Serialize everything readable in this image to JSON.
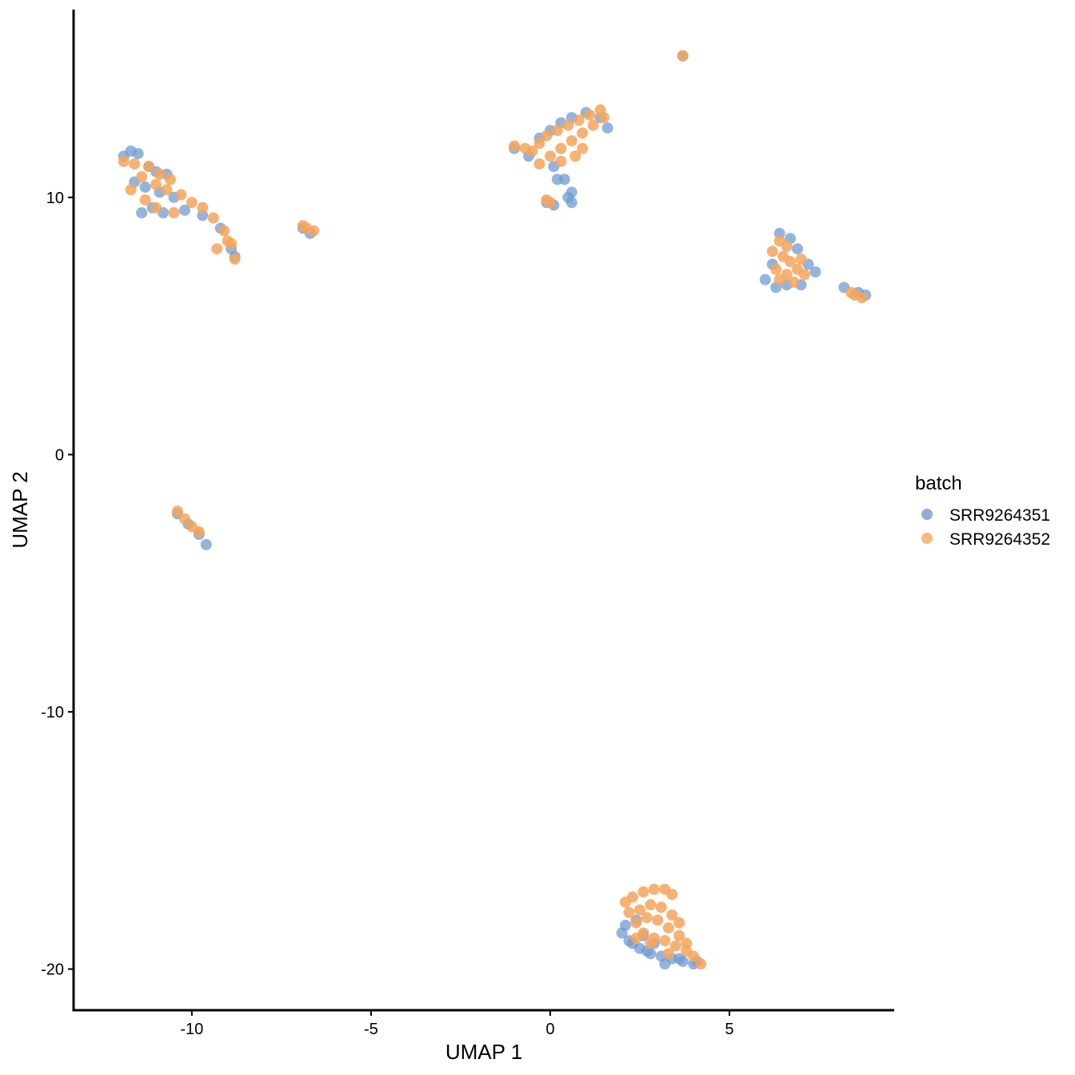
{
  "chart_data": {
    "type": "scatter",
    "title": "",
    "xlabel": "UMAP 1",
    "ylabel": "UMAP 2",
    "xlim": [
      -13.3,
      9.6
    ],
    "ylim": [
      -21.6,
      17.3
    ],
    "xticks": [
      -10,
      -5,
      0,
      5
    ],
    "yticks": [
      -20,
      -10,
      0,
      10
    ],
    "grid": false,
    "legend": {
      "title": "batch",
      "placement": "right",
      "entries": [
        "SRR9264351",
        "SRR9264352"
      ]
    },
    "colors": {
      "SRR9264351": "#6f9bd1",
      "SRR9264352": "#f5a55c"
    },
    "series": [
      {
        "name": "SRR9264351",
        "points": [
          [
            -11.9,
            11.6
          ],
          [
            -11.7,
            11.8
          ],
          [
            -11.5,
            11.7
          ],
          [
            -11.2,
            11.2
          ],
          [
            -11.0,
            11.0
          ],
          [
            -10.7,
            10.9
          ],
          [
            -11.6,
            10.6
          ],
          [
            -11.3,
            10.4
          ],
          [
            -10.9,
            10.2
          ],
          [
            -10.5,
            10.0
          ],
          [
            -11.1,
            9.6
          ],
          [
            -11.4,
            9.4
          ],
          [
            -10.8,
            9.4
          ],
          [
            -10.2,
            9.5
          ],
          [
            -9.7,
            9.3
          ],
          [
            -9.2,
            8.8
          ],
          [
            -8.9,
            8.0
          ],
          [
            -8.8,
            7.7
          ],
          [
            -6.9,
            8.8
          ],
          [
            -6.7,
            8.6
          ],
          [
            -10.4,
            -2.3
          ],
          [
            -10.1,
            -2.7
          ],
          [
            -9.8,
            -3.1
          ],
          [
            -9.6,
            -3.5
          ],
          [
            -1.0,
            11.9
          ],
          [
            -0.6,
            11.6
          ],
          [
            -0.3,
            12.3
          ],
          [
            0.0,
            12.6
          ],
          [
            0.3,
            12.9
          ],
          [
            0.6,
            13.1
          ],
          [
            1.0,
            13.3
          ],
          [
            1.4,
            13.1
          ],
          [
            1.6,
            12.7
          ],
          [
            0.1,
            11.2
          ],
          [
            0.2,
            10.7
          ],
          [
            0.4,
            10.7
          ],
          [
            0.5,
            10.0
          ],
          [
            0.6,
            10.2
          ],
          [
            0.6,
            9.8
          ],
          [
            -0.1,
            9.8
          ],
          [
            0.1,
            9.7
          ],
          [
            6.4,
            8.6
          ],
          [
            6.7,
            8.4
          ],
          [
            6.9,
            8.0
          ],
          [
            7.2,
            7.4
          ],
          [
            7.4,
            7.1
          ],
          [
            6.2,
            7.4
          ],
          [
            6.0,
            6.8
          ],
          [
            6.3,
            6.5
          ],
          [
            6.6,
            6.6
          ],
          [
            7.0,
            6.6
          ],
          [
            8.2,
            6.5
          ],
          [
            8.6,
            6.3
          ],
          [
            8.8,
            6.2
          ],
          [
            3.7,
            15.5
          ],
          [
            2.0,
            -18.6
          ],
          [
            2.2,
            -18.9
          ],
          [
            2.5,
            -19.2
          ],
          [
            2.8,
            -19.4
          ],
          [
            3.1,
            -19.5
          ],
          [
            3.4,
            -19.6
          ],
          [
            3.7,
            -19.7
          ],
          [
            4.0,
            -19.8
          ],
          [
            2.1,
            -18.3
          ],
          [
            2.4,
            -18.1
          ],
          [
            2.3,
            -19.0
          ],
          [
            2.7,
            -19.3
          ],
          [
            3.2,
            -19.8
          ],
          [
            3.6,
            -19.6
          ],
          [
            4.1,
            -19.7
          ],
          [
            2.6,
            -18.7
          ],
          [
            2.9,
            -19.0
          ]
        ]
      },
      {
        "name": "SRR9264352",
        "points": [
          [
            -11.9,
            11.4
          ],
          [
            -11.6,
            11.3
          ],
          [
            -11.2,
            11.2
          ],
          [
            -10.9,
            10.9
          ],
          [
            -10.6,
            10.7
          ],
          [
            -11.4,
            10.8
          ],
          [
            -11.0,
            10.5
          ],
          [
            -10.7,
            10.3
          ],
          [
            -10.3,
            10.1
          ],
          [
            -10.0,
            9.8
          ],
          [
            -9.7,
            9.6
          ],
          [
            -9.4,
            9.2
          ],
          [
            -9.1,
            8.7
          ],
          [
            -8.9,
            8.2
          ],
          [
            -8.8,
            7.6
          ],
          [
            -9.0,
            8.3
          ],
          [
            -9.3,
            8.0
          ],
          [
            -11.3,
            9.9
          ],
          [
            -11.0,
            9.6
          ],
          [
            -10.5,
            9.4
          ],
          [
            -11.7,
            10.3
          ],
          [
            -6.9,
            8.9
          ],
          [
            -6.8,
            8.8
          ],
          [
            -6.6,
            8.7
          ],
          [
            -10.4,
            -2.2
          ],
          [
            -10.2,
            -2.5
          ],
          [
            -10.0,
            -2.8
          ],
          [
            -9.8,
            -3.0
          ],
          [
            -1.0,
            12.0
          ],
          [
            -0.7,
            11.9
          ],
          [
            -0.5,
            11.8
          ],
          [
            -0.3,
            12.1
          ],
          [
            -0.1,
            12.4
          ],
          [
            0.2,
            12.6
          ],
          [
            0.5,
            12.8
          ],
          [
            0.8,
            13.0
          ],
          [
            1.1,
            13.2
          ],
          [
            1.4,
            13.4
          ],
          [
            1.5,
            13.1
          ],
          [
            1.2,
            12.8
          ],
          [
            0.9,
            12.5
          ],
          [
            0.6,
            12.2
          ],
          [
            0.3,
            11.9
          ],
          [
            0.0,
            11.6
          ],
          [
            -0.3,
            11.3
          ],
          [
            0.3,
            11.4
          ],
          [
            0.7,
            11.6
          ],
          [
            0.9,
            11.9
          ],
          [
            -0.1,
            9.9
          ],
          [
            0.0,
            9.8
          ],
          [
            6.4,
            8.3
          ],
          [
            6.6,
            8.1
          ],
          [
            6.5,
            7.7
          ],
          [
            6.7,
            7.5
          ],
          [
            6.3,
            7.2
          ],
          [
            6.6,
            7.0
          ],
          [
            6.9,
            7.2
          ],
          [
            7.1,
            7.0
          ],
          [
            6.4,
            6.8
          ],
          [
            6.8,
            6.7
          ],
          [
            6.2,
            7.9
          ],
          [
            7.0,
            7.6
          ],
          [
            8.5,
            6.2
          ],
          [
            8.7,
            6.1
          ],
          [
            8.4,
            6.3
          ],
          [
            3.7,
            15.5
          ],
          [
            2.1,
            -17.4
          ],
          [
            2.3,
            -17.2
          ],
          [
            2.6,
            -17.0
          ],
          [
            2.9,
            -16.9
          ],
          [
            3.2,
            -16.9
          ],
          [
            3.4,
            -17.1
          ],
          [
            2.2,
            -17.8
          ],
          [
            2.5,
            -17.7
          ],
          [
            2.8,
            -17.5
          ],
          [
            3.1,
            -17.6
          ],
          [
            3.4,
            -17.9
          ],
          [
            3.6,
            -18.2
          ],
          [
            2.4,
            -18.2
          ],
          [
            2.7,
            -18.0
          ],
          [
            3.0,
            -18.1
          ],
          [
            3.3,
            -18.4
          ],
          [
            3.6,
            -18.7
          ],
          [
            3.8,
            -19.0
          ],
          [
            2.6,
            -18.6
          ],
          [
            2.9,
            -18.8
          ],
          [
            3.2,
            -18.9
          ],
          [
            3.5,
            -19.1
          ],
          [
            3.8,
            -19.3
          ],
          [
            4.0,
            -19.5
          ],
          [
            4.2,
            -19.8
          ],
          [
            3.3,
            -19.4
          ],
          [
            2.8,
            -19.0
          ],
          [
            2.4,
            -18.8
          ]
        ]
      }
    ]
  }
}
